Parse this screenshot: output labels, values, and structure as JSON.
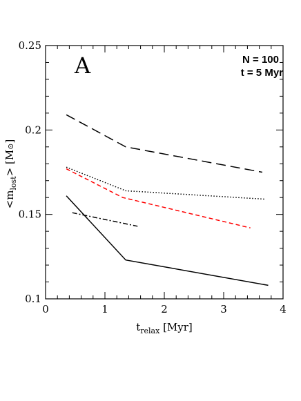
{
  "chart_data": {
    "type": "line",
    "panel_label": "A",
    "annotations": [
      "N = 100",
      "t = 5 Myr"
    ],
    "xlabel": "t",
    "xlabel_sub": "relax",
    "xlabel_unit": "[Myr]",
    "ylabel": "<m",
    "ylabel_sub": "lost",
    "ylabel_tail": "> [M",
    "ylabel_sun": "⊙",
    "ylabel_close": "]",
    "xlim": [
      0,
      4
    ],
    "ylim": [
      0.1,
      0.25
    ],
    "xticks": [
      0,
      1,
      2,
      3,
      4
    ],
    "xtick_labels": [
      "0",
      "1",
      "2",
      "3",
      "4"
    ],
    "yticks": [
      0.1,
      0.15,
      0.2,
      0.25
    ],
    "ytick_labels": [
      "0.1",
      "0.15",
      "0.2",
      "0.25"
    ],
    "grid": false,
    "series": [
      {
        "style": "long-dash",
        "color": "#000000",
        "x": [
          0.35,
          1.35,
          3.65
        ],
        "y": [
          0.209,
          0.19,
          0.175
        ]
      },
      {
        "style": "dotted",
        "color": "#000000",
        "x": [
          0.35,
          1.35,
          3.7
        ],
        "y": [
          0.178,
          0.164,
          0.159
        ]
      },
      {
        "style": "short-dash",
        "color": "#ff0000",
        "x": [
          0.35,
          1.3,
          3.45
        ],
        "y": [
          0.177,
          0.16,
          0.142
        ]
      },
      {
        "style": "dash-dot",
        "color": "#000000",
        "x": [
          0.45,
          1.55
        ],
        "y": [
          0.151,
          0.143
        ]
      },
      {
        "style": "solid",
        "color": "#000000",
        "x": [
          0.35,
          1.35,
          3.75
        ],
        "y": [
          0.161,
          0.123,
          0.108
        ]
      }
    ]
  }
}
